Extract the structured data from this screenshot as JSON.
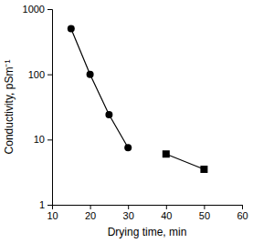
{
  "chart_data": {
    "type": "line",
    "x_label": "Drying time, min",
    "y_label": "Conductivity, pSm⁻¹",
    "log": "y",
    "grid": false,
    "xlim": [
      10,
      60
    ],
    "xticks": [
      10,
      20,
      30,
      40,
      50,
      60
    ],
    "ylim": [
      1,
      1000
    ],
    "yticks": [
      1,
      10,
      100,
      1000
    ],
    "series": [
      {
        "x": [
          15,
          20,
          25,
          30
        ],
        "values": [
          500,
          100,
          24,
          7.5
        ],
        "marker": "circle",
        "line_style": "solid",
        "color": "#000000"
      },
      {
        "x": [
          40,
          50
        ],
        "values": [
          6,
          3.5
        ],
        "marker": "square",
        "line_style": "solid",
        "color": "#000000"
      }
    ]
  }
}
